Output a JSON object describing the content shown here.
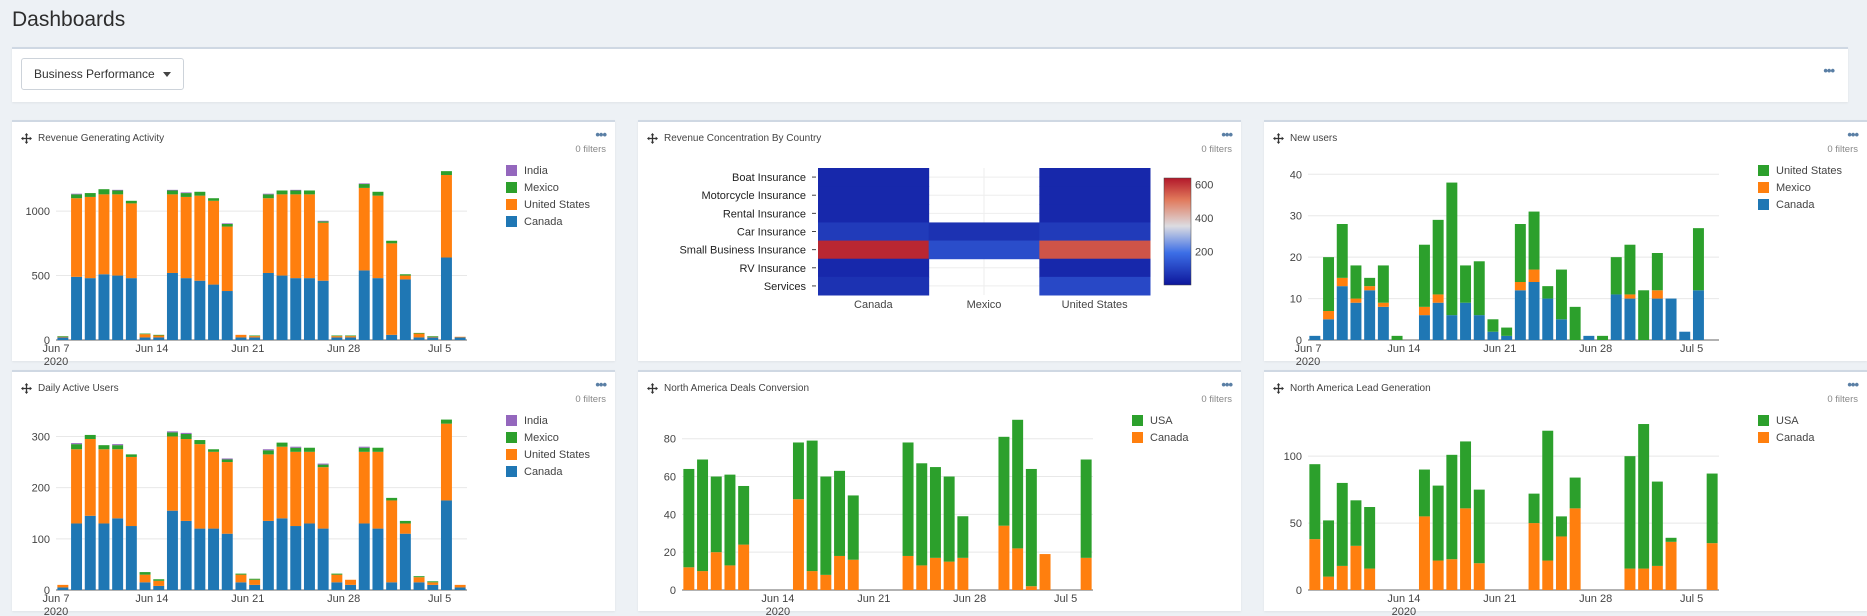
{
  "header": {
    "title": "Dashboards"
  },
  "toolbar": {
    "dropdown_label": "Business Performance",
    "more": "•••"
  },
  "colors": {
    "india": "#9467bd",
    "mexico": "#2ca02c",
    "united_states": "#ff7f0e",
    "canada": "#1f77b4",
    "usa": "#2ca02c"
  },
  "panels": [
    {
      "title": "Revenue Generating Activity",
      "filters": "0 filters"
    },
    {
      "title": "Revenue Concentration By Country",
      "filters": "0 filters"
    },
    {
      "title": "New users",
      "filters": "0 filters"
    },
    {
      "title": "Daily Active Users",
      "filters": "0 filters"
    },
    {
      "title": "North America Deals Conversion",
      "filters": "0 filters"
    },
    {
      "title": "North America Lead Generation",
      "filters": "0 filters"
    }
  ],
  "chart_data": [
    {
      "type": "bar",
      "stacked": true,
      "legend": "top-right",
      "x": [
        "2020-06-07",
        "2020-06-08",
        "2020-06-09",
        "2020-06-10",
        "2020-06-11",
        "2020-06-12",
        "2020-06-13",
        "2020-06-14",
        "2020-06-15",
        "2020-06-16",
        "2020-06-17",
        "2020-06-18",
        "2020-06-19",
        "2020-06-20",
        "2020-06-21",
        "2020-06-22",
        "2020-06-23",
        "2020-06-24",
        "2020-06-25",
        "2020-06-26",
        "2020-06-27",
        "2020-06-28",
        "2020-06-29",
        "2020-06-30",
        "2020-07-01",
        "2020-07-02",
        "2020-07-03",
        "2020-07-04",
        "2020-07-05",
        "2020-07-06"
      ],
      "x_ticks": [
        {
          "x": "2020-06-07",
          "label": "Jun 7",
          "sub": "2020"
        },
        {
          "x": "2020-06-14",
          "label": "Jun 14"
        },
        {
          "x": "2020-06-21",
          "label": "Jun 21"
        },
        {
          "x": "2020-06-28",
          "label": "Jun 28"
        },
        {
          "x": "2020-07-05",
          "label": "Jul 5"
        }
      ],
      "y_ticks": [
        0,
        500,
        1000
      ],
      "ylim": [
        0,
        1350
      ],
      "series": [
        {
          "name": "Canada",
          "color": "#1f77b4",
          "values": [
            20,
            490,
            480,
            510,
            500,
            480,
            20,
            20,
            520,
            480,
            460,
            430,
            380,
            20,
            20,
            520,
            500,
            480,
            480,
            460,
            20,
            20,
            540,
            480,
            40,
            470,
            20,
            20,
            640,
            20
          ]
        },
        {
          "name": "United States",
          "color": "#ff7f0e",
          "values": [
            5,
            610,
            630,
            620,
            630,
            580,
            25,
            15,
            610,
            630,
            660,
            650,
            500,
            20,
            10,
            580,
            630,
            650,
            650,
            450,
            10,
            10,
            640,
            640,
            710,
            30,
            30,
            5,
            640,
            5
          ]
        },
        {
          "name": "Mexico",
          "color": "#2ca02c",
          "values": [
            5,
            30,
            30,
            40,
            30,
            20,
            5,
            5,
            30,
            30,
            30,
            20,
            20,
            0,
            5,
            30,
            30,
            30,
            30,
            10,
            5,
            5,
            30,
            30,
            20,
            10,
            5,
            5,
            30,
            0
          ]
        },
        {
          "name": "India",
          "color": "#9467bd",
          "values": [
            0,
            5,
            0,
            0,
            5,
            0,
            0,
            0,
            5,
            5,
            0,
            0,
            5,
            0,
            0,
            5,
            0,
            5,
            0,
            5,
            0,
            0,
            5,
            0,
            0,
            0,
            0,
            0,
            0,
            0
          ]
        }
      ]
    },
    {
      "type": "heatmap",
      "x": [
        "Canada",
        "Mexico",
        "United States"
      ],
      "y": [
        "Boat Insurance",
        "Motorcycle Insurance",
        "Rental Insurance",
        "Car Insurance",
        "Small Business Insurance",
        "RV Insurance",
        "Services"
      ],
      "colorbar_ticks": [
        200,
        400,
        600
      ],
      "zrange": [
        0,
        640
      ],
      "values": [
        [
          40,
          null,
          40
        ],
        [
          40,
          null,
          40
        ],
        [
          40,
          null,
          40
        ],
        [
          80,
          60,
          80
        ],
        [
          620,
          120,
          560
        ],
        [
          40,
          null,
          40
        ],
        [
          60,
          null,
          110
        ]
      ]
    },
    {
      "type": "bar",
      "stacked": true,
      "legend": "top-right",
      "x": [
        "2020-06-07",
        "2020-06-08",
        "2020-06-09",
        "2020-06-10",
        "2020-06-11",
        "2020-06-12",
        "2020-06-13",
        "2020-06-14",
        "2020-06-15",
        "2020-06-16",
        "2020-06-17",
        "2020-06-18",
        "2020-06-19",
        "2020-06-20",
        "2020-06-21",
        "2020-06-22",
        "2020-06-23",
        "2020-06-24",
        "2020-06-25",
        "2020-06-26",
        "2020-06-27",
        "2020-06-28",
        "2020-06-29",
        "2020-06-30",
        "2020-07-01",
        "2020-07-02",
        "2020-07-03",
        "2020-07-04",
        "2020-07-05",
        "2020-07-06"
      ],
      "x_ticks": [
        {
          "x": "2020-06-07",
          "label": "Jun 7",
          "sub": "2020"
        },
        {
          "x": "2020-06-14",
          "label": "Jun 14"
        },
        {
          "x": "2020-06-21",
          "label": "Jun 21"
        },
        {
          "x": "2020-06-28",
          "label": "Jun 28"
        },
        {
          "x": "2020-07-05",
          "label": "Jul 5"
        }
      ],
      "y_ticks": [
        0,
        10,
        20,
        30,
        40
      ],
      "ylim": [
        0,
        42
      ],
      "series": [
        {
          "name": "Canada",
          "color": "#1f77b4",
          "values": [
            1,
            5,
            13,
            9,
            12,
            8,
            0,
            0,
            6,
            9,
            6,
            9,
            6,
            2,
            1,
            12,
            14,
            10,
            5,
            0,
            1,
            0,
            11,
            10,
            0,
            10,
            10,
            2,
            12,
            0
          ]
        },
        {
          "name": "Mexico",
          "color": "#ff7f0e",
          "values": [
            0,
            2,
            2,
            1,
            1,
            1,
            0,
            0,
            2,
            2,
            0,
            0,
            0,
            0,
            0,
            2,
            3,
            0,
            0,
            0,
            0,
            0,
            0,
            1,
            0,
            2,
            0,
            0,
            0,
            0
          ]
        },
        {
          "name": "United States",
          "color": "#2ca02c",
          "values": [
            0,
            13,
            13,
            8,
            2,
            9,
            1,
            0,
            15,
            18,
            32,
            9,
            13,
            3,
            2,
            14,
            14,
            3,
            12,
            8,
            0,
            1,
            9,
            12,
            12,
            9,
            0,
            0,
            15,
            0
          ]
        }
      ]
    },
    {
      "type": "bar",
      "stacked": true,
      "legend": "top-right",
      "x": [
        "2020-06-07",
        "2020-06-08",
        "2020-06-09",
        "2020-06-10",
        "2020-06-11",
        "2020-06-12",
        "2020-06-13",
        "2020-06-14",
        "2020-06-15",
        "2020-06-16",
        "2020-06-17",
        "2020-06-18",
        "2020-06-19",
        "2020-06-20",
        "2020-06-21",
        "2020-06-22",
        "2020-06-23",
        "2020-06-24",
        "2020-06-25",
        "2020-06-26",
        "2020-06-27",
        "2020-06-28",
        "2020-06-29",
        "2020-06-30",
        "2020-07-01",
        "2020-07-02",
        "2020-07-03",
        "2020-07-04",
        "2020-07-05",
        "2020-07-06"
      ],
      "x_ticks": [
        {
          "x": "2020-06-07",
          "label": "Jun 7",
          "sub": "2020"
        },
        {
          "x": "2020-06-14",
          "label": "Jun 14"
        },
        {
          "x": "2020-06-21",
          "label": "Jun 21"
        },
        {
          "x": "2020-06-28",
          "label": "Jun 28"
        },
        {
          "x": "2020-07-05",
          "label": "Jul 5"
        }
      ],
      "y_ticks": [
        0,
        100,
        200,
        300
      ],
      "ylim": [
        0,
        340
      ],
      "series": [
        {
          "name": "Canada",
          "color": "#1f77b4",
          "values": [
            5,
            130,
            145,
            130,
            140,
            125,
            15,
            8,
            155,
            135,
            120,
            120,
            110,
            15,
            10,
            135,
            140,
            125,
            130,
            120,
            15,
            10,
            130,
            120,
            15,
            110,
            15,
            10,
            175,
            5
          ]
        },
        {
          "name": "United States",
          "color": "#ff7f0e",
          "values": [
            5,
            145,
            150,
            145,
            135,
            135,
            15,
            10,
            145,
            160,
            165,
            150,
            140,
            15,
            10,
            130,
            140,
            145,
            140,
            120,
            15,
            10,
            140,
            150,
            160,
            20,
            10,
            5,
            150,
            5
          ]
        },
        {
          "name": "Mexico",
          "color": "#2ca02c",
          "values": [
            0,
            10,
            8,
            8,
            8,
            5,
            5,
            3,
            8,
            10,
            8,
            5,
            5,
            2,
            2,
            8,
            8,
            8,
            8,
            5,
            2,
            0,
            8,
            8,
            5,
            5,
            2,
            2,
            8,
            0
          ]
        },
        {
          "name": "India",
          "color": "#9467bd",
          "values": [
            0,
            2,
            0,
            0,
            2,
            0,
            0,
            0,
            2,
            2,
            0,
            0,
            2,
            0,
            0,
            2,
            0,
            2,
            0,
            2,
            0,
            0,
            2,
            0,
            0,
            0,
            0,
            0,
            0,
            0
          ]
        }
      ]
    },
    {
      "type": "bar",
      "stacked": true,
      "legend": "top-right",
      "x": [
        "2020-06-07",
        "2020-06-08",
        "2020-06-09",
        "2020-06-10",
        "2020-06-11",
        "2020-06-12",
        "2020-06-13",
        "2020-06-14",
        "2020-06-15",
        "2020-06-16",
        "2020-06-17",
        "2020-06-18",
        "2020-06-19",
        "2020-06-20",
        "2020-06-21",
        "2020-06-22",
        "2020-06-23",
        "2020-06-24",
        "2020-06-25",
        "2020-06-26",
        "2020-06-27",
        "2020-06-28",
        "2020-06-29",
        "2020-06-30",
        "2020-07-01",
        "2020-07-02",
        "2020-07-03",
        "2020-07-04",
        "2020-07-05",
        "2020-07-06"
      ],
      "x_ticks": [
        {
          "x": "2020-06-14",
          "label": "Jun 14",
          "sub": "2020"
        },
        {
          "x": "2020-06-21",
          "label": "Jun 21"
        },
        {
          "x": "2020-06-28",
          "label": "Jun 28"
        },
        {
          "x": "2020-07-05",
          "label": "Jul 5"
        }
      ],
      "y_ticks": [
        0,
        20,
        40,
        60,
        80
      ],
      "ylim": [
        0,
        92
      ],
      "series": [
        {
          "name": "Canada",
          "color": "#ff7f0e",
          "values": [
            12,
            10,
            20,
            13,
            24,
            0,
            0,
            0,
            48,
            10,
            8,
            18,
            16,
            0,
            0,
            0,
            18,
            13,
            17,
            15,
            17,
            0,
            0,
            34,
            22,
            2,
            19,
            0,
            0,
            17
          ]
        },
        {
          "name": "USA",
          "color": "#2ca02c",
          "values": [
            52,
            59,
            40,
            48,
            31,
            0,
            0,
            0,
            30,
            69,
            52,
            45,
            34,
            0,
            0,
            0,
            60,
            54,
            48,
            45,
            22,
            0,
            0,
            47,
            68,
            62,
            0,
            0,
            0,
            52
          ]
        }
      ]
    },
    {
      "type": "bar",
      "stacked": true,
      "legend": "top-right",
      "x": [
        "2020-06-07",
        "2020-06-08",
        "2020-06-09",
        "2020-06-10",
        "2020-06-11",
        "2020-06-12",
        "2020-06-13",
        "2020-06-14",
        "2020-06-15",
        "2020-06-16",
        "2020-06-17",
        "2020-06-18",
        "2020-06-19",
        "2020-06-20",
        "2020-06-21",
        "2020-06-22",
        "2020-06-23",
        "2020-06-24",
        "2020-06-25",
        "2020-06-26",
        "2020-06-27",
        "2020-06-28",
        "2020-06-29",
        "2020-06-30",
        "2020-07-01",
        "2020-07-02",
        "2020-07-03",
        "2020-07-04",
        "2020-07-05",
        "2020-07-06"
      ],
      "x_ticks": [
        {
          "x": "2020-06-14",
          "label": "Jun 14",
          "sub": "2020"
        },
        {
          "x": "2020-06-21",
          "label": "Jun 21"
        },
        {
          "x": "2020-06-28",
          "label": "Jun 28"
        },
        {
          "x": "2020-07-05",
          "label": "Jul 5"
        }
      ],
      "y_ticks": [
        0,
        50,
        100
      ],
      "ylim": [
        0,
        130
      ],
      "series": [
        {
          "name": "Canada",
          "color": "#ff7f0e",
          "values": [
            38,
            10,
            18,
            33,
            16,
            0,
            0,
            0,
            55,
            22,
            23,
            61,
            20,
            0,
            0,
            0,
            50,
            22,
            40,
            61,
            0,
            0,
            0,
            16,
            16,
            18,
            36,
            0,
            0,
            35
          ]
        },
        {
          "name": "USA",
          "color": "#2ca02c",
          "values": [
            56,
            42,
            62,
            34,
            46,
            0,
            0,
            0,
            35,
            56,
            78,
            50,
            55,
            0,
            0,
            0,
            22,
            97,
            15,
            23,
            0,
            0,
            0,
            84,
            108,
            63,
            3,
            0,
            0,
            52
          ]
        }
      ]
    }
  ]
}
